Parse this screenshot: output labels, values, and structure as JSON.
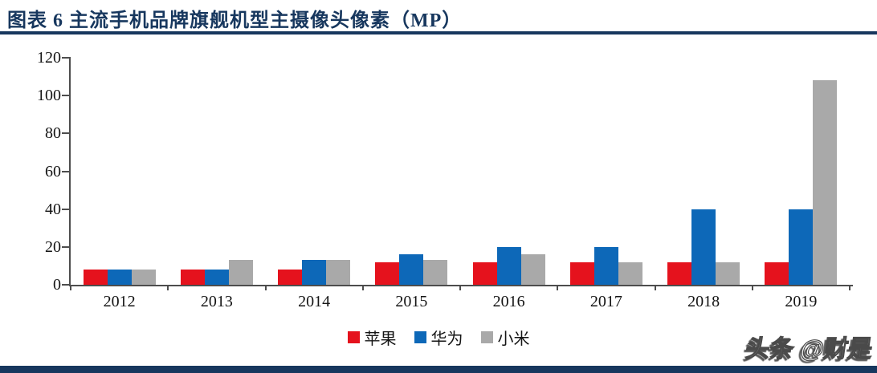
{
  "header": {
    "title": "图表 6  主流手机品牌旗舰机型主摄像头像素（MP）"
  },
  "watermark": {
    "text": "头条 @财是"
  },
  "theme": {
    "accent_navy": "#17375e",
    "axis_color": "#4d4d4d",
    "background": "#ffffff"
  },
  "chart_data": {
    "type": "bar",
    "figure_label": "图表 6",
    "title": "主流手机品牌旗舰机型主摄像头像素（MP）",
    "categories": [
      "2012",
      "2013",
      "2014",
      "2015",
      "2016",
      "2017",
      "2018",
      "2019"
    ],
    "series": [
      {
        "key": "apple",
        "name": "苹果",
        "color": "#e5121d",
        "values": [
          8,
          8,
          8,
          12,
          12,
          12,
          12,
          12
        ]
      },
      {
        "key": "huawei",
        "name": "华为",
        "color": "#0d68b8",
        "values": [
          8,
          8,
          13,
          16,
          20,
          20,
          40,
          40
        ]
      },
      {
        "key": "xiaomi",
        "name": "小米",
        "color": "#a9a9a9",
        "values": [
          8,
          13,
          13,
          13,
          16,
          12,
          12,
          108
        ]
      }
    ],
    "xlabel": "",
    "ylabel": "",
    "ylim": [
      0,
      120
    ],
    "yticks": [
      0,
      20,
      40,
      60,
      80,
      100,
      120
    ],
    "grid": false,
    "legend_position": "bottom"
  }
}
